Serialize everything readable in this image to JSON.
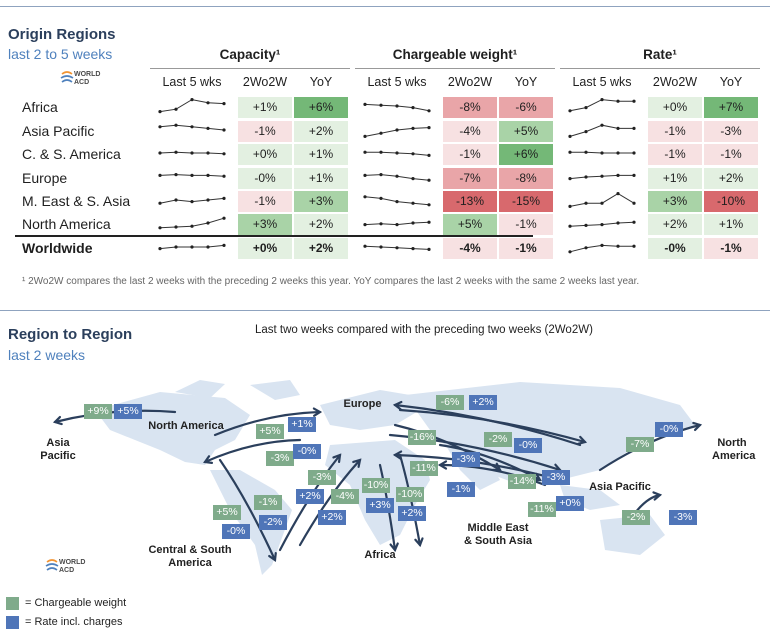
{
  "top": {
    "title": "Origin Regions",
    "subtitle": "last 2 to 5 weeks"
  },
  "logo": {
    "line1": "WORLD",
    "line2": "ACD"
  },
  "groups": [
    {
      "name": "Capacity¹",
      "cols": [
        "Last 5 wks",
        "2Wo2W",
        "YoY"
      ]
    },
    {
      "name": "Chargeable weight¹",
      "cols": [
        "Last 5 wks",
        "2Wo2W",
        "YoY"
      ]
    },
    {
      "name": "Rate¹",
      "cols": [
        "Last 5 wks",
        "2Wo2W",
        "YoY"
      ]
    }
  ],
  "chart_data": {
    "type": "table",
    "rows": [
      {
        "region": "Africa",
        "capacity": {
          "spark": [
            1.5,
            3,
            9,
            7,
            6.5
          ],
          "wo2w": "+1%",
          "yoy": "+6%"
        },
        "weight": {
          "spark": [
            6,
            5.5,
            5,
            4,
            2
          ],
          "wo2w": "-8%",
          "yoy": "-6%"
        },
        "rate": {
          "spark": [
            2,
            4,
            9,
            8,
            8
          ],
          "wo2w": "+0%",
          "yoy": "+7%"
        }
      },
      {
        "region": "Asia Pacific",
        "capacity": {
          "spark": [
            7,
            8,
            7,
            6,
            5
          ],
          "wo2w": "-1%",
          "yoy": "+2%"
        },
        "weight": {
          "spark": [
            1,
            3,
            5,
            6,
            6.5
          ],
          "wo2w": "-4%",
          "yoy": "+5%"
        },
        "rate": {
          "spark": [
            1,
            4,
            8,
            6,
            6
          ],
          "wo2w": "-1%",
          "yoy": "-3%"
        }
      },
      {
        "region": "C. & S. America",
        "capacity": {
          "spark": [
            5,
            5.5,
            5,
            5,
            4.5
          ],
          "wo2w": "+0%",
          "yoy": "+1%"
        },
        "weight": {
          "spark": [
            5.5,
            5.5,
            5,
            4.5,
            3.5
          ],
          "wo2w": "-1%",
          "yoy": "+6%"
        },
        "rate": {
          "spark": [
            5.5,
            5.5,
            5,
            5,
            5
          ],
          "wo2w": "-1%",
          "yoy": "-1%"
        }
      },
      {
        "region": "Europe",
        "capacity": {
          "spark": [
            6,
            6.5,
            6,
            6,
            5.5
          ],
          "wo2w": "-0%",
          "yoy": "+1%"
        },
        "weight": {
          "spark": [
            6,
            6.5,
            5.5,
            4,
            3
          ],
          "wo2w": "-7%",
          "yoy": "-8%"
        },
        "rate": {
          "spark": [
            4,
            5,
            5.5,
            6,
            6
          ],
          "wo2w": "+1%",
          "yoy": "+2%"
        }
      },
      {
        "region": "M. East & S. Asia",
        "capacity": {
          "spark": [
            3,
            5,
            4,
            5,
            6
          ],
          "wo2w": "-1%",
          "yoy": "+3%"
        },
        "weight": {
          "spark": [
            7,
            6,
            4,
            3,
            2
          ],
          "wo2w": "-13%",
          "yoy": "-15%"
        },
        "rate": {
          "spark": [
            1,
            3,
            3,
            9,
            3
          ],
          "wo2w": "+3%",
          "yoy": "-10%"
        }
      },
      {
        "region": "North America",
        "capacity": {
          "spark": [
            2,
            2.5,
            3,
            5,
            8
          ],
          "wo2w": "+3%",
          "yoy": "+2%"
        },
        "weight": {
          "spark": [
            4,
            4.5,
            4,
            5,
            5.5
          ],
          "wo2w": "+5%",
          "yoy": "-1%"
        },
        "rate": {
          "spark": [
            3,
            3.5,
            4,
            5,
            5.5
          ],
          "wo2w": "+2%",
          "yoy": "+1%"
        }
      },
      {
        "region": "Worldwide",
        "capacity": {
          "spark": [
            4,
            5,
            5,
            5,
            6
          ],
          "wo2w": "+0%",
          "yoy": "+2%"
        },
        "weight": {
          "spark": [
            5.5,
            5,
            4.5,
            4,
            3.5
          ],
          "wo2w": "-4%",
          "yoy": "-1%"
        },
        "rate": {
          "spark": [
            2,
            4.5,
            6,
            5.5,
            5.5
          ],
          "wo2w": "-0%",
          "yoy": "-1%"
        }
      }
    ]
  },
  "footnote": "¹ 2Wo2W compares the last 2 weeks with the preceding 2 weeks this year. YoY compares the last 2 weeks with the same 2 weeks last year.",
  "bottom": {
    "title": "Region to Region",
    "subtitle": "last 2 weeks",
    "map_title": "Last two weeks compared with the preceding two weeks (2Wo2W)"
  },
  "regions": {
    "north_america_w": "North America",
    "asia_pacific_w": [
      "Asia",
      "Pacific"
    ],
    "europe": "Europe",
    "cs_america": [
      "Central & South",
      "America"
    ],
    "africa": "Africa",
    "mesa": [
      "Middle East",
      "& South Asia"
    ],
    "asia_pacific": "Asia Pacific",
    "north_america_e": [
      "North",
      "America"
    ]
  },
  "map_labels": [
    {
      "v": "+9%",
      "c": "g"
    },
    {
      "v": "+5%",
      "c": "b"
    },
    {
      "v": "+5%",
      "c": "g"
    },
    {
      "v": "+1%",
      "c": "b"
    },
    {
      "v": "-3%",
      "c": "g"
    },
    {
      "v": "-0%",
      "c": "b"
    },
    {
      "v": "-6%",
      "c": "g"
    },
    {
      "v": "+2%",
      "c": "b"
    },
    {
      "v": "-16%",
      "c": "g"
    },
    {
      "v": "-2%",
      "c": "g"
    },
    {
      "v": "-0%",
      "c": "b"
    },
    {
      "v": "-3%",
      "c": "b"
    },
    {
      "v": "-11%",
      "c": "g"
    },
    {
      "v": "-1%",
      "c": "b"
    },
    {
      "v": "-14%",
      "c": "g"
    },
    {
      "v": "-3%",
      "c": "b"
    },
    {
      "v": "-11%",
      "c": "g"
    },
    {
      "v": "+0%",
      "c": "b"
    },
    {
      "v": "-7%",
      "c": "g"
    },
    {
      "v": "-0%",
      "c": "b"
    },
    {
      "v": "-2%",
      "c": "g"
    },
    {
      "v": "-3%",
      "c": "b"
    },
    {
      "v": "-3%",
      "c": "g"
    },
    {
      "v": "+2%",
      "c": "b"
    },
    {
      "v": "-4%",
      "c": "g"
    },
    {
      "v": "+2%",
      "c": "b"
    },
    {
      "v": "-1%",
      "c": "g"
    },
    {
      "v": "-2%",
      "c": "b"
    },
    {
      "v": "+5%",
      "c": "g"
    },
    {
      "v": "-0%",
      "c": "b"
    },
    {
      "v": "-10%",
      "c": "g"
    },
    {
      "v": "+3%",
      "c": "b"
    },
    {
      "v": "-10%",
      "c": "g"
    },
    {
      "v": "+2%",
      "c": "b"
    }
  ],
  "legend": {
    "weight": "= Chargeable weight",
    "rate": "= Rate incl. charges",
    "weight_color": "#7fab8b",
    "rate_color": "#4f75b8"
  }
}
